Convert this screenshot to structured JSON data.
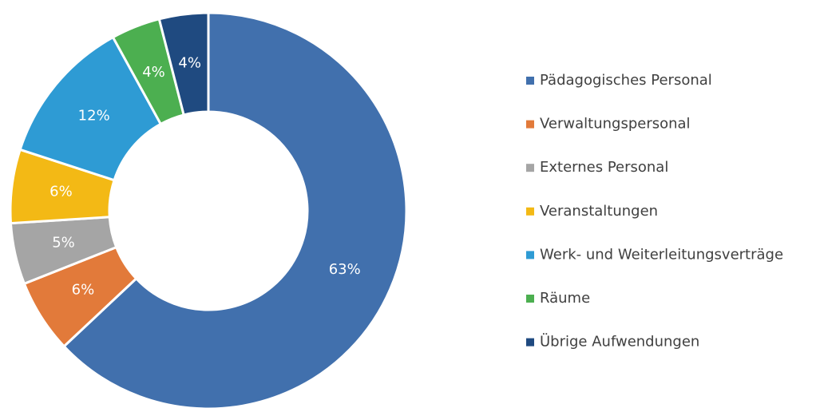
{
  "chart_data": {
    "type": "donut",
    "categories": [
      "Pädagogisches Personal",
      "Verwaltungspersonal",
      "Externes Personal",
      "Veranstaltungen",
      "Werk- und Weiterleitungsverträge",
      "Räume",
      "Übrige Aufwendungen"
    ],
    "values": [
      63,
      6,
      5,
      6,
      12,
      4,
      4
    ],
    "value_labels": [
      "63%",
      "6%",
      "5%",
      "6%",
      "12%",
      "4%",
      "4%"
    ],
    "colors": [
      "#4170ad",
      "#e27a3a",
      "#a5a5a5",
      "#f3b915",
      "#2e9bd4",
      "#4caf50",
      "#1f4a80"
    ],
    "legend": "right"
  }
}
